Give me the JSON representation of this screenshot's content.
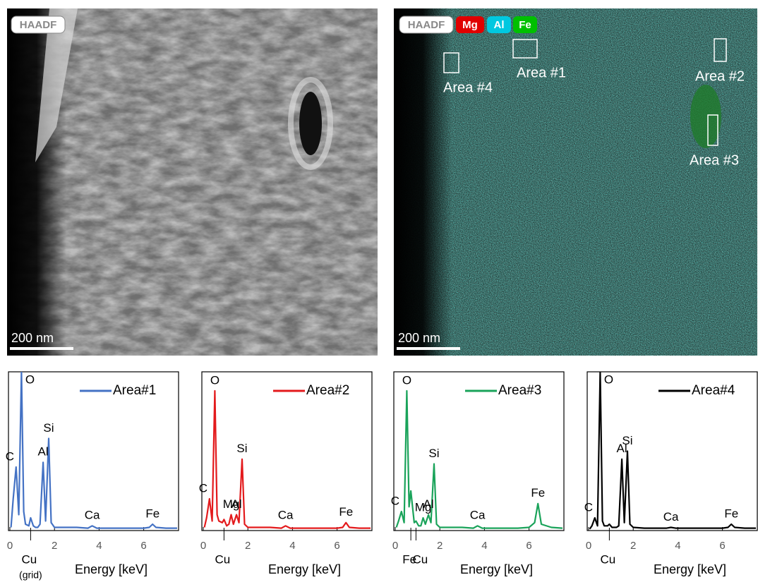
{
  "images": [
    {
      "labels": [
        "HAADF"
      ],
      "scale_bar": "200 nm"
    },
    {
      "labels": [
        "HAADF",
        "Mg",
        "Al",
        "Fe"
      ],
      "areas": [
        "Area #4",
        "Area #1",
        "Area #2",
        "Area #3"
      ],
      "scale_bar": "200 nm"
    }
  ],
  "chart_data": [
    {
      "type": "line",
      "xlabel": "Energy [keV]",
      "xlim": [
        0,
        7.5
      ],
      "xticks": [
        0,
        2,
        4,
        6
      ],
      "ylim": [
        0,
        100
      ],
      "x": [
        0.05,
        0.15,
        0.28,
        0.4,
        0.52,
        0.62,
        0.7,
        0.85,
        0.93,
        1.05,
        1.15,
        1.25,
        1.35,
        1.49,
        1.6,
        1.74,
        1.85,
        2.0,
        2.5,
        3.0,
        3.5,
        3.69,
        3.9,
        4.5,
        5.0,
        5.5,
        6.0,
        6.25,
        6.4,
        6.55,
        7.0,
        7.5
      ],
      "series": [
        {
          "name": "Area#1",
          "color": "#4472c4",
          "values": [
            2,
            20,
            40,
            10,
            100,
            12,
            4,
            3,
            8,
            3,
            2,
            2,
            4,
            43,
            6,
            58,
            5,
            2,
            2,
            2,
            1.5,
            3,
            1.5,
            1.5,
            1.5,
            1.5,
            1.5,
            2,
            4,
            2,
            1.5,
            1.5
          ]
        }
      ],
      "annotations": [
        {
          "text": "C",
          "x": 0.28
        },
        {
          "text": "O",
          "x": 0.52
        },
        {
          "text": "Al",
          "x": 1.49
        },
        {
          "text": "Si",
          "x": 1.74
        },
        {
          "text": "Ca",
          "x": 3.69
        },
        {
          "text": "Fe",
          "x": 6.4
        }
      ],
      "axis_annotations": [
        {
          "text": "Cu",
          "subtext": "(grid)",
          "x": 0.93
        }
      ]
    },
    {
      "type": "line",
      "xlabel": "Energy [keV]",
      "xlim": [
        0,
        7.5
      ],
      "xticks": [
        0,
        2,
        4,
        6
      ],
      "ylim": [
        0,
        100
      ],
      "x": [
        0.05,
        0.15,
        0.28,
        0.4,
        0.52,
        0.62,
        0.7,
        0.85,
        0.93,
        1.05,
        1.15,
        1.25,
        1.35,
        1.49,
        1.6,
        1.74,
        1.85,
        2.0,
        2.5,
        3.0,
        3.5,
        3.69,
        3.9,
        4.5,
        5.0,
        5.5,
        6.0,
        6.25,
        6.4,
        6.55,
        7.0,
        7.5
      ],
      "series": [
        {
          "name": "Area#2",
          "color": "#e31a1c",
          "values": [
            2,
            8,
            20,
            6,
            88,
            10,
            6,
            5,
            7,
            3,
            4,
            10,
            4,
            10,
            5,
            45,
            4,
            2,
            2,
            2,
            1.5,
            3,
            1.5,
            1.5,
            1.5,
            1.5,
            1.5,
            2,
            5,
            2,
            1.5,
            1.5
          ]
        }
      ],
      "annotations": [
        {
          "text": "C",
          "x": 0.28
        },
        {
          "text": "O",
          "x": 0.52
        },
        {
          "text": "Mg",
          "x": 1.25
        },
        {
          "text": "Al",
          "x": 1.49
        },
        {
          "text": "Si",
          "x": 1.74
        },
        {
          "text": "Ca",
          "x": 3.69
        },
        {
          "text": "Fe",
          "x": 6.4
        }
      ],
      "axis_annotations": [
        {
          "text": "Cu",
          "x": 0.93
        }
      ]
    },
    {
      "type": "line",
      "xlabel": "Energy [keV]",
      "xlim": [
        0,
        7.5
      ],
      "xticks": [
        0,
        2,
        4,
        6
      ],
      "ylim": [
        0,
        100
      ],
      "x": [
        0.05,
        0.15,
        0.28,
        0.4,
        0.52,
        0.62,
        0.7,
        0.85,
        0.93,
        1.05,
        1.15,
        1.25,
        1.35,
        1.49,
        1.6,
        1.74,
        1.85,
        2.0,
        2.5,
        3.0,
        3.5,
        3.69,
        3.9,
        4.5,
        5.0,
        5.5,
        6.0,
        6.25,
        6.4,
        6.55,
        7.0,
        7.5
      ],
      "series": [
        {
          "name": "Area#3",
          "color": "#1aa35a",
          "values": [
            2,
            6,
            12,
            5,
            88,
            15,
            25,
            5,
            6,
            3,
            3,
            8,
            4,
            10,
            5,
            42,
            4,
            2,
            2,
            2,
            1.5,
            3,
            1.5,
            1.5,
            1.5,
            1.5,
            2,
            5,
            17,
            4,
            2,
            1.5
          ]
        }
      ],
      "annotations": [
        {
          "text": "C",
          "x": 0.28
        },
        {
          "text": "O",
          "x": 0.52
        },
        {
          "text": "Mg",
          "x": 1.25
        },
        {
          "text": "Al",
          "x": 1.49
        },
        {
          "text": "Si",
          "x": 1.74
        },
        {
          "text": "Ca",
          "x": 3.69
        },
        {
          "text": "Fe",
          "x": 6.4
        }
      ],
      "axis_annotations": [
        {
          "text": "Fe",
          "x": 0.7
        },
        {
          "text": "Cu",
          "x": 0.93
        }
      ]
    },
    {
      "type": "line",
      "xlabel": "Energy [keV]",
      "xlim": [
        0,
        7.5
      ],
      "xticks": [
        0,
        2,
        4,
        6
      ],
      "ylim": [
        0,
        100
      ],
      "x": [
        0.05,
        0.15,
        0.28,
        0.4,
        0.52,
        0.62,
        0.7,
        0.85,
        0.93,
        1.05,
        1.15,
        1.25,
        1.35,
        1.49,
        1.6,
        1.74,
        1.85,
        2.0,
        2.5,
        3.0,
        3.5,
        3.69,
        3.9,
        4.5,
        5.0,
        5.5,
        6.0,
        6.25,
        6.4,
        6.55,
        7.0,
        7.5
      ],
      "series": [
        {
          "name": "Area#4",
          "color": "#000000",
          "values": [
            1,
            3,
            8,
            3,
            100,
            6,
            3,
            3,
            4,
            2,
            2,
            2,
            3,
            45,
            5,
            50,
            4,
            2,
            1.5,
            1.5,
            1.5,
            2,
            1.5,
            1.5,
            1.5,
            1.5,
            1.5,
            2,
            4,
            2,
            1.5,
            1.5
          ]
        }
      ],
      "annotations": [
        {
          "text": "C",
          "x": 0.28
        },
        {
          "text": "O",
          "x": 0.52
        },
        {
          "text": "Al",
          "x": 1.49
        },
        {
          "text": "Si",
          "x": 1.74
        },
        {
          "text": "Ca",
          "x": 3.69
        },
        {
          "text": "Fe",
          "x": 6.4
        }
      ],
      "axis_annotations": [
        {
          "text": "Cu",
          "x": 0.93
        }
      ]
    }
  ]
}
